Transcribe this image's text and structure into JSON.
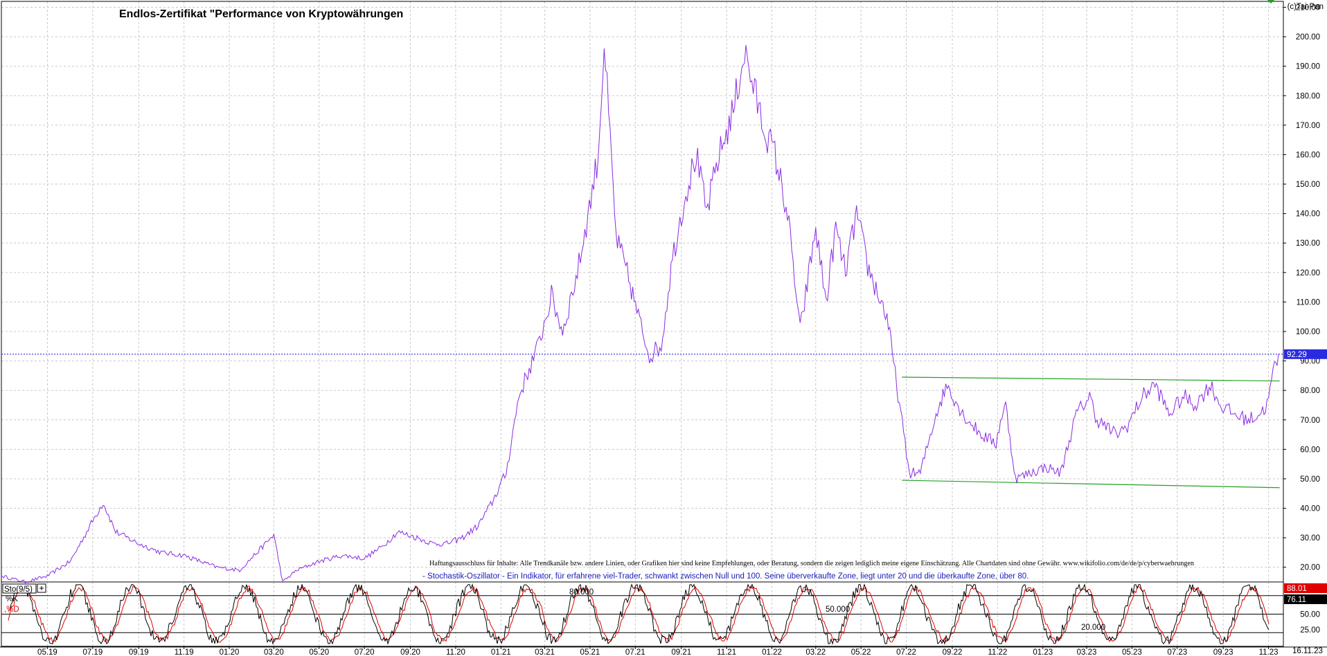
{
  "header": {
    "title": "Endlos-Zertifikat \"Performance von Kryptowährungen",
    "watermark": "(c)Tai-Pan"
  },
  "colors": {
    "price_line": "#8a2be2",
    "trend_line": "#22a022",
    "current_price_line": "#2a2ae0",
    "stoch_k": "#000000",
    "stoch_d": "#e00000",
    "grid": "#c8c8c8",
    "price_label_bg": "#2a2ae0",
    "k_label_bg": "#e00000",
    "d_label_bg": "#000000"
  },
  "disclaimer": "Haftungsausschluss für Inhalte: Alle Trendkanäle bzw. andere Linien, oder Grafiken hier sind keine Empfehlungen, oder Beratung, sondern die zeigen lediglich meine eigene Einschätzung. Alle Chartdaten sind ohne Gewähr.  www.wikifolio.com/de/de/p/cyberwaehrungen",
  "indicator_note": "- Stochastik-Oszillator - Ein Indikator, für erfahrene viel-Trader, schwankt zwischen Null und 100. Seine überverkaufte Zone, liegt unter 20 und die überkaufte Zone, über 80.",
  "oscillator": {
    "label": "Sto(9/5)",
    "k_label": "%K",
    "d_label": ",%D",
    "level_labels": [
      "80.000",
      "50.000",
      "20.000"
    ]
  },
  "chart_data": [
    {
      "type": "line",
      "panel": "price",
      "title": "Endlos-Zertifikat \"Performance von Kryptowährungen",
      "x_ticks": [
        "05.19",
        "07.19",
        "09.19",
        "11.19",
        "01.20",
        "03.20",
        "05.20",
        "07.20",
        "09.20",
        "11.20",
        "01.21",
        "03.21",
        "05.21",
        "07.21",
        "09.21",
        "11.21",
        "01.22",
        "03.22",
        "05.22",
        "07.22",
        "09.22",
        "11.22",
        "01.23",
        "03.23",
        "05.23",
        "07.23",
        "09.23",
        "11.23"
      ],
      "x_end_label": "16.11.23",
      "y_ticks": [
        20,
        30,
        40,
        50,
        60,
        70,
        80,
        90,
        100,
        110,
        120,
        130,
        140,
        150,
        160,
        170,
        180,
        190,
        200,
        210
      ],
      "y_tick_labels": [
        "20.00",
        "30.00",
        "40.00",
        "50.00",
        "60.00",
        "70.00",
        "80.00",
        "90.00",
        "100.00",
        "110.00",
        "120.00",
        "130.00",
        "140.00",
        "150.00",
        "160.00",
        "170.00",
        "180.00",
        "190.00",
        "200.00",
        "210.00"
      ],
      "ylim": [
        15,
        212
      ],
      "grid": true,
      "current_value": 92.29,
      "current_value_label": "92.29",
      "series": [
        {
          "x": [
            "2019-03-01",
            "2019-04-01",
            "2019-05-01",
            "2019-06-01",
            "2019-06-25",
            "2019-07-15",
            "2019-08-01",
            "2019-09-01",
            "2019-10-01",
            "2019-11-01",
            "2019-12-15",
            "2020-01-15",
            "2020-02-15",
            "2020-03-01",
            "2020-03-13",
            "2020-04-01",
            "2020-05-01",
            "2020-06-01",
            "2020-07-01",
            "2020-07-25",
            "2020-08-15",
            "2020-09-10",
            "2020-10-01",
            "2020-10-20",
            "2020-11-10",
            "2020-12-01",
            "2020-12-20",
            "2021-01-08",
            "2021-01-25",
            "2021-02-20",
            "2021-03-10",
            "2021-03-25",
            "2021-04-14",
            "2021-04-30",
            "2021-05-12",
            "2021-05-20",
            "2021-06-05",
            "2021-06-22",
            "2021-07-05",
            "2021-07-20",
            "2021-08-05",
            "2021-08-20",
            "2021-09-05",
            "2021-09-21",
            "2021-10-05",
            "2021-10-20",
            "2021-11-10",
            "2021-11-25",
            "2021-12-05",
            "2021-12-20",
            "2022-01-05",
            "2022-01-22",
            "2022-02-08",
            "2022-03-01",
            "2022-03-15",
            "2022-03-28",
            "2022-04-10",
            "2022-04-25",
            "2022-05-10",
            "2022-05-25",
            "2022-06-05",
            "2022-06-18",
            "2022-07-05",
            "2022-07-20",
            "2022-08-10",
            "2022-08-25",
            "2022-09-15",
            "2022-10-10",
            "2022-10-30",
            "2022-11-05",
            "2022-11-12",
            "2022-11-25",
            "2022-12-15",
            "2023-01-05",
            "2023-01-25",
            "2023-02-15",
            "2023-03-05",
            "2023-03-15",
            "2023-04-10",
            "2023-04-25",
            "2023-05-15",
            "2023-06-01",
            "2023-06-20",
            "2023-07-10",
            "2023-07-25",
            "2023-08-15",
            "2023-08-28",
            "2023-09-15",
            "2023-10-05",
            "2023-10-20",
            "2023-10-30",
            "2023-11-09",
            "2023-11-16"
          ],
          "values": [
            17,
            15,
            17,
            22,
            33,
            42,
            32,
            28,
            25,
            24,
            20,
            19,
            27,
            31,
            15,
            19,
            22,
            24,
            23,
            27,
            32,
            30,
            28,
            28,
            30,
            34,
            42,
            52,
            78,
            95,
            112,
            100,
            120,
            142,
            160,
            198,
            132,
            118,
            105,
            92,
            95,
            125,
            145,
            160,
            140,
            158,
            175,
            195,
            185,
            170,
            160,
            140,
            100,
            135,
            110,
            135,
            120,
            140,
            122,
            112,
            105,
            82,
            52,
            52,
            72,
            82,
            72,
            65,
            62,
            70,
            75,
            50,
            52,
            54,
            52,
            72,
            78,
            70,
            65,
            68,
            78,
            82,
            72,
            78,
            75,
            82,
            75,
            72,
            70,
            72,
            75,
            88,
            92.29
          ],
          "color": "#8a2be2"
        },
        {
          "x": [
            "2022-06-25",
            "2023-11-16"
          ],
          "values": [
            84.5,
            83.2
          ],
          "color": "#22a022"
        },
        {
          "x": [
            "2022-06-25",
            "2023-11-16"
          ],
          "values": [
            49.5,
            47
          ],
          "color": "#22a022"
        }
      ]
    },
    {
      "type": "line",
      "panel": "oscillator",
      "title": "Sto(9/5)",
      "y_ticks": [
        25,
        50
      ],
      "y_tick_labels": [
        "25.00",
        "50.00"
      ],
      "ylim": [
        0,
        100
      ],
      "levels": [
        20,
        50,
        80
      ],
      "current_k": 88.01,
      "current_k_label": "88.01",
      "current_d": 76.11,
      "current_d_label": "76.11",
      "series": [
        {
          "name": "%K",
          "color": "#000000"
        },
        {
          "name": "%D",
          "color": "#e00000"
        }
      ]
    }
  ]
}
